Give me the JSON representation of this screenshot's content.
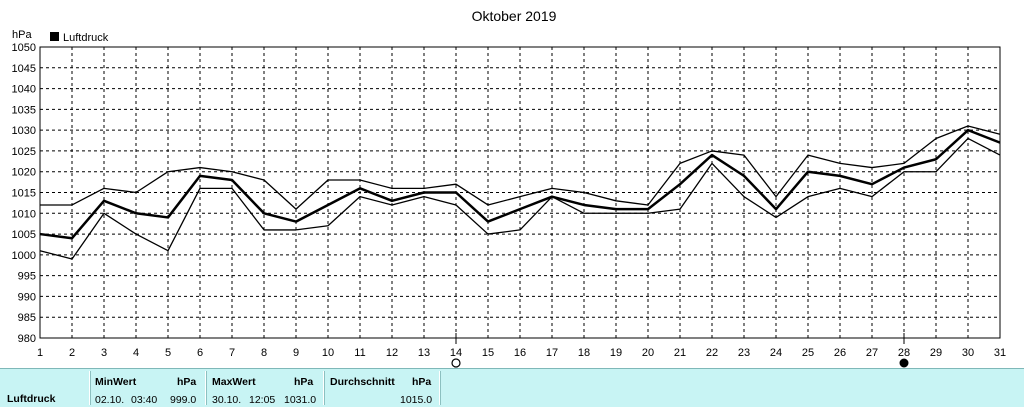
{
  "chart_data": {
    "type": "line",
    "title": "Oktober 2019",
    "ylabel": "hPa",
    "legend": "Luftdruck",
    "legend_position": "top-left",
    "grid": true,
    "ylim": [
      980,
      1050
    ],
    "yticks": [
      980,
      985,
      990,
      995,
      1000,
      1005,
      1010,
      1015,
      1020,
      1025,
      1030,
      1035,
      1040,
      1045,
      1050
    ],
    "x": [
      1,
      2,
      3,
      4,
      5,
      6,
      7,
      8,
      9,
      10,
      11,
      12,
      13,
      14,
      15,
      16,
      17,
      18,
      19,
      20,
      21,
      22,
      23,
      24,
      25,
      26,
      27,
      28,
      29,
      30,
      31
    ],
    "series": [
      {
        "role": "max",
        "values": [
          1012,
          1012,
          1016,
          1015,
          1020,
          1021,
          1020,
          1018,
          1011,
          1018,
          1018,
          1016,
          1016,
          1017,
          1012,
          1014,
          1016,
          1015,
          1013,
          1012,
          1022,
          1025,
          1024,
          1014,
          1024,
          1022,
          1021,
          1022,
          1028,
          1031,
          1029
        ]
      },
      {
        "role": "mean",
        "values": [
          1005,
          1004,
          1013,
          1010,
          1009,
          1019,
          1018,
          1010,
          1008,
          1012,
          1016,
          1013,
          1015,
          1015,
          1008,
          1011,
          1014,
          1012,
          1011,
          1011,
          1017,
          1024,
          1019,
          1011,
          1020,
          1019,
          1017,
          1021,
          1023,
          1030,
          1027
        ]
      },
      {
        "role": "min",
        "values": [
          1001,
          999,
          1010,
          1005,
          1001,
          1016,
          1016,
          1006,
          1006,
          1007,
          1014,
          1012,
          1014,
          1012,
          1005,
          1006,
          1014,
          1010,
          1010,
          1010,
          1011,
          1022,
          1014,
          1009,
          1014,
          1016,
          1014,
          1020,
          1020,
          1028,
          1024
        ]
      }
    ],
    "moon_phases": [
      {
        "day": 14,
        "phase": "full-moon"
      },
      {
        "day": 28,
        "phase": "new-moon"
      }
    ],
    "colors": {
      "line": "#000000",
      "grid": "#000000",
      "footer_bg": "#c8f4f4"
    }
  },
  "footer": {
    "label": "Luftdruck",
    "min_header": "MinWert",
    "min_unit": "hPa",
    "min_date": "02.10.",
    "min_time": "03:40",
    "min_value": "999.0",
    "max_header": "MaxWert",
    "max_unit": "hPa",
    "max_date": "30.10.",
    "max_time": "12:05",
    "max_value": "1031.0",
    "avg_header": "Durchschnitt",
    "avg_unit": "hPa",
    "avg_value": "1015.0"
  }
}
